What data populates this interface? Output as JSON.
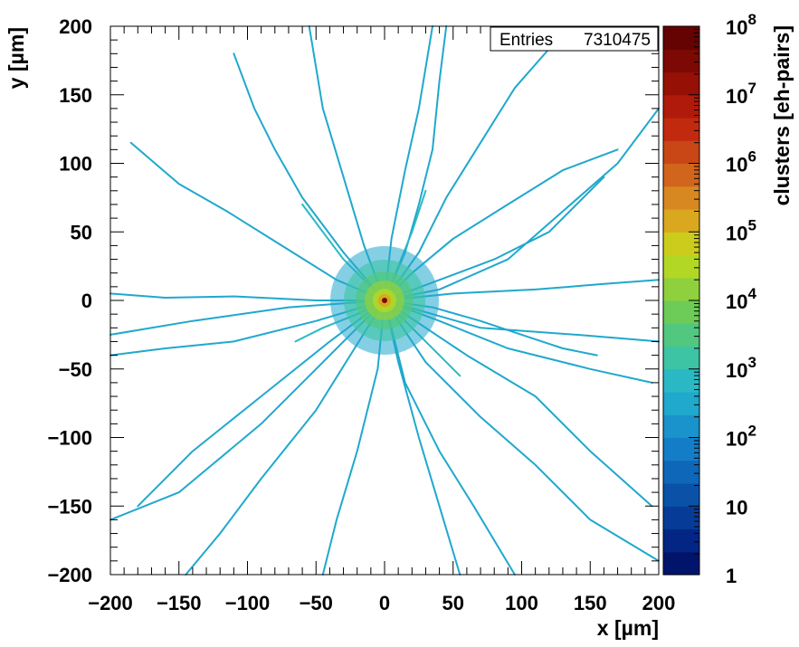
{
  "chart_data": {
    "type": "heatmap",
    "title": "",
    "xlabel": "x [µm]",
    "ylabel": "y [µm]",
    "zlabel": "clusters [eh-pairs]",
    "xlim": [
      -200,
      200
    ],
    "ylim": [
      -200,
      200
    ],
    "x_ticks": [
      -200,
      -150,
      -100,
      -50,
      0,
      50,
      100,
      150,
      200
    ],
    "y_ticks": [
      -200,
      -150,
      -100,
      -50,
      0,
      50,
      100,
      150,
      200
    ],
    "x_tick_labels": [
      "−200",
      "−150",
      "−100",
      "−50",
      "0",
      "50",
      "100",
      "150",
      "200"
    ],
    "y_tick_labels": [
      "−200",
      "−150",
      "−100",
      "−50",
      "0",
      "50",
      "100",
      "150",
      "200"
    ],
    "z_scale": "log",
    "zlim": [
      1,
      100000000
    ],
    "z_tick_values": [
      1,
      10,
      100,
      1000,
      10000,
      100000,
      1000000,
      10000000,
      100000000
    ],
    "z_tick_labels": [
      {
        "base": "1",
        "exp": ""
      },
      {
        "base": "10",
        "exp": ""
      },
      {
        "base": "10",
        "exp": "2"
      },
      {
        "base": "10",
        "exp": "3"
      },
      {
        "base": "10",
        "exp": "4"
      },
      {
        "base": "10",
        "exp": "5"
      },
      {
        "base": "10",
        "exp": "6"
      },
      {
        "base": "10",
        "exp": "7"
      },
      {
        "base": "10",
        "exp": "8"
      }
    ],
    "stats_box": {
      "label": "Entries",
      "value": "7310475"
    },
    "palette": [
      "#00146b",
      "#032583",
      "#063c98",
      "#0a52a8",
      "#0e67b9",
      "#147dc7",
      "#1a92cc",
      "#20a8cd",
      "#2ab9c4",
      "#3cc4a4",
      "#52c77f",
      "#6dcb58",
      "#8fd03d",
      "#b3d725",
      "#cccc1c",
      "#d9a81e",
      "#d88820",
      "#d2651c",
      "#c94716",
      "#c22a10",
      "#b01a0b",
      "#971006",
      "#7c0904",
      "#650202"
    ],
    "tracks": [
      {
        "x": [
          0,
          40,
          90,
          130,
          170,
          200
        ],
        "y": [
          0,
          8,
          30,
          65,
          100,
          140
        ],
        "z": 300
      },
      {
        "x": [
          0,
          50,
          110,
          160,
          200
        ],
        "y": [
          0,
          5,
          8,
          12,
          15
        ],
        "z": 400
      },
      {
        "x": [
          0,
          40,
          90,
          150,
          195
        ],
        "y": [
          0,
          -15,
          -35,
          -50,
          -60
        ],
        "z": 400
      },
      {
        "x": [
          0,
          60,
          110,
          150,
          195
        ],
        "y": [
          0,
          -40,
          -70,
          -110,
          -150
        ],
        "z": 300
      },
      {
        "x": [
          0,
          30,
          70,
          110,
          150,
          200
        ],
        "y": [
          0,
          -45,
          -85,
          -120,
          -160,
          -190
        ],
        "z": 250
      },
      {
        "x": [
          0,
          15,
          40,
          65,
          95
        ],
        "y": [
          0,
          -60,
          -110,
          -150,
          -200
        ],
        "z": 250
      },
      {
        "x": [
          0,
          10,
          25,
          40,
          55
        ],
        "y": [
          0,
          -45,
          -100,
          -150,
          -200
        ],
        "z": 300
      },
      {
        "x": [
          0,
          -5,
          -20,
          -35,
          -45
        ],
        "y": [
          0,
          -50,
          -110,
          -160,
          -200
        ],
        "z": 250
      },
      {
        "x": [
          0,
          -25,
          -50,
          -90,
          -120,
          -145
        ],
        "y": [
          0,
          -40,
          -80,
          -130,
          -170,
          -200
        ],
        "z": 300
      },
      {
        "x": [
          0,
          -40,
          -90,
          -140,
          -180
        ],
        "y": [
          0,
          -30,
          -70,
          -110,
          -150
        ],
        "z": 250
      },
      {
        "x": [
          0,
          -50,
          -110,
          -160,
          -200
        ],
        "y": [
          0,
          -15,
          -30,
          -35,
          -40
        ],
        "z": 400
      },
      {
        "x": [
          0,
          -50,
          -110,
          -160,
          -200
        ],
        "y": [
          0,
          0,
          3,
          2,
          5
        ],
        "z": 400
      },
      {
        "x": [
          0,
          -35,
          -75,
          -115,
          -150,
          -185
        ],
        "y": [
          0,
          15,
          40,
          65,
          85,
          115
        ],
        "z": 300
      },
      {
        "x": [
          0,
          -30,
          -60,
          -80,
          -95,
          -110
        ],
        "y": [
          0,
          35,
          75,
          110,
          140,
          180
        ],
        "z": 300
      },
      {
        "x": [
          0,
          -15,
          -30,
          -45,
          -55
        ],
        "y": [
          0,
          40,
          90,
          140,
          200
        ],
        "z": 250
      },
      {
        "x": [
          0,
          5,
          15,
          25,
          35
        ],
        "y": [
          0,
          45,
          95,
          140,
          200
        ],
        "z": 250
      },
      {
        "x": [
          0,
          15,
          25,
          35,
          40,
          45
        ],
        "y": [
          0,
          35,
          70,
          110,
          160,
          200
        ],
        "z": 300
      },
      {
        "x": [
          0,
          25,
          45,
          70,
          95,
          130
        ],
        "y": [
          0,
          35,
          75,
          115,
          155,
          195
        ],
        "z": 300
      },
      {
        "x": [
          0,
          40,
          80,
          120,
          160
        ],
        "y": [
          0,
          15,
          30,
          50,
          90
        ],
        "z": 250
      },
      {
        "x": [
          0,
          35,
          70,
          100,
          130,
          155
        ],
        "y": [
          0,
          -5,
          -15,
          -25,
          -35,
          -40
        ],
        "z": 400
      },
      {
        "x": [
          0,
          -15,
          -30,
          -45,
          -60
        ],
        "y": [
          0,
          15,
          30,
          50,
          70
        ],
        "z": 600
      },
      {
        "x": [
          0,
          20,
          40,
          55
        ],
        "y": [
          0,
          -20,
          -40,
          -55
        ],
        "z": 600
      },
      {
        "x": [
          0,
          -20,
          -45,
          -65
        ],
        "y": [
          0,
          -10,
          -20,
          -30
        ],
        "z": 600
      },
      {
        "x": [
          0,
          10,
          20,
          30
        ],
        "y": [
          0,
          25,
          50,
          80
        ],
        "z": 600
      },
      {
        "x": [
          0,
          70,
          140,
          200
        ],
        "y": [
          0,
          -20,
          -25,
          -30
        ],
        "z": 300
      },
      {
        "x": [
          0,
          -70,
          -140,
          -200
        ],
        "y": [
          0,
          -5,
          -15,
          -25
        ],
        "z": 300
      },
      {
        "x": [
          0,
          -20,
          -50,
          -90,
          -150,
          -200
        ],
        "y": [
          0,
          -20,
          -50,
          -90,
          -140,
          -160
        ],
        "z": 300
      },
      {
        "x": [
          0,
          20,
          50,
          90,
          130,
          170
        ],
        "y": [
          0,
          20,
          45,
          70,
          95,
          110
        ],
        "z": 300
      }
    ],
    "core": {
      "x": 0,
      "y": 0,
      "z": 30000000
    }
  }
}
